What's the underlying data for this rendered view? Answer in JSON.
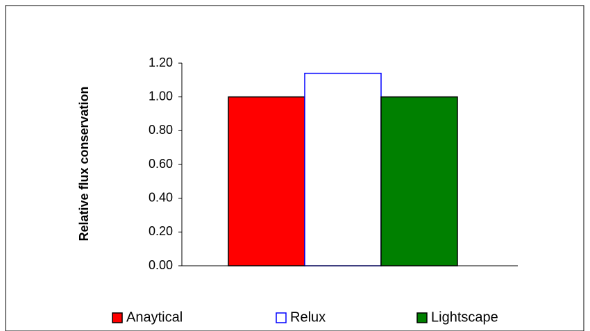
{
  "chart_data": {
    "type": "bar",
    "title": "",
    "xlabel": "",
    "ylabel": "Relative flux conservation",
    "ylim": [
      0,
      1.2
    ],
    "yticks": [
      "0.00",
      "0.20",
      "0.40",
      "0.60",
      "0.80",
      "1.00",
      "1.20"
    ],
    "grid": false,
    "legend": "bottom",
    "series": [
      {
        "name": "Anaytical",
        "value": 1.0,
        "fill": "#ff0000",
        "stroke": "#000000"
      },
      {
        "name": "Relux",
        "value": 1.14,
        "fill": "#ffffff",
        "stroke": "#0000ff"
      },
      {
        "name": "Lightscape",
        "value": 1.0,
        "fill": "#008000",
        "stroke": "#000000"
      }
    ]
  }
}
